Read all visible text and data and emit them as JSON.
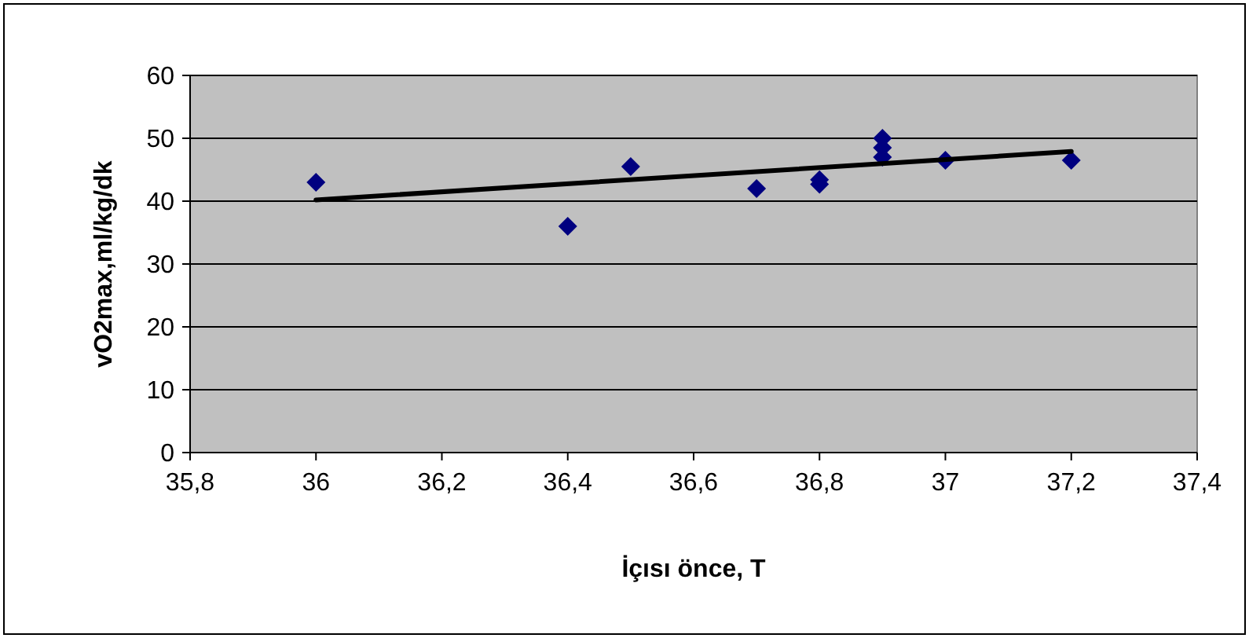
{
  "chart_data": {
    "type": "scatter",
    "xlabel": "İçısı önce, T",
    "ylabel": "vO2max,ml/kg/dk",
    "xlim": [
      35.8,
      37.4
    ],
    "xticks": [
      {
        "value": 35.8,
        "label": "35,8"
      },
      36,
      {
        "value": 36.2,
        "label": "36,2"
      },
      {
        "value": 36.4,
        "label": "36,4"
      },
      {
        "value": 36.6,
        "label": "36,6"
      },
      {
        "value": 36.8,
        "label": "36,8"
      },
      37,
      {
        "value": 37.2,
        "label": "37,2"
      },
      {
        "value": 37.4,
        "label": "37,4"
      }
    ],
    "ylim": [
      0,
      60
    ],
    "yticks": [
      0,
      10,
      20,
      30,
      40,
      50,
      60
    ],
    "grid": "y",
    "series": [
      {
        "color": "#000080",
        "marker": "diamond",
        "x": [
          36,
          36.4,
          36.5,
          36.7,
          36.8,
          36.8,
          36.9,
          36.9,
          36.9,
          37,
          37.2
        ],
        "values": [
          43,
          36,
          45.5,
          42,
          43.4,
          42.7,
          50,
          48.5,
          47,
          46.5,
          46.5
        ]
      },
      {
        "type": "line",
        "color": "#000000",
        "marker": "none",
        "line_style": "solid",
        "x": [
          36,
          37.2
        ],
        "values": [
          40.2,
          47.9
        ]
      }
    ]
  }
}
